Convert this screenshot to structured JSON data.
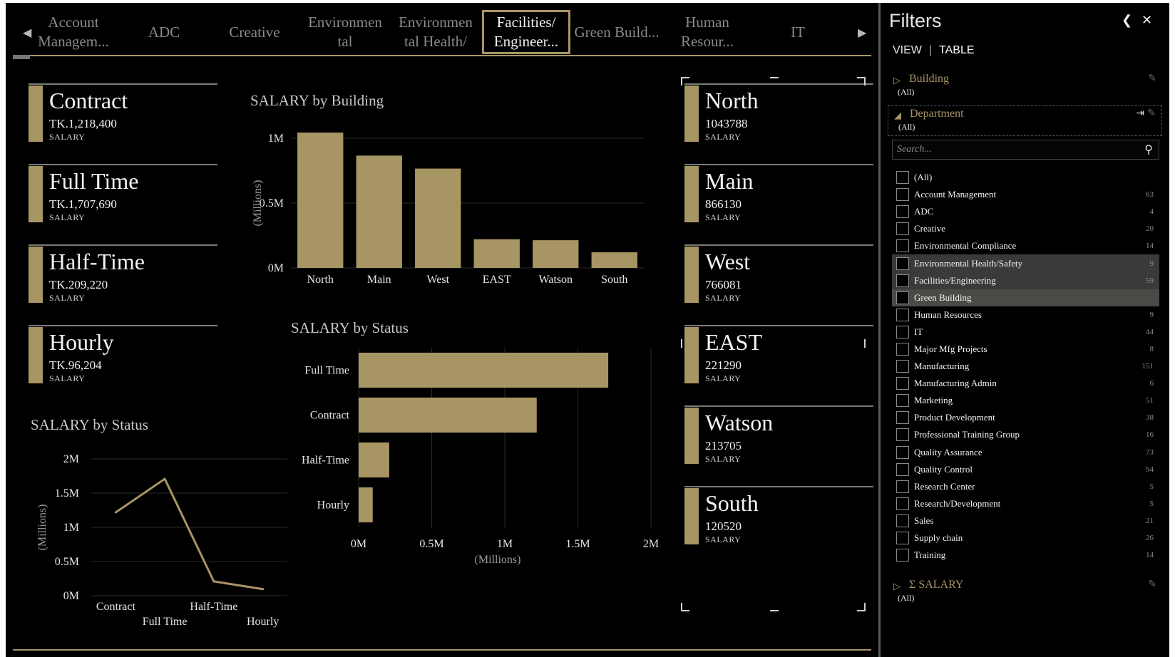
{
  "tiles": {
    "items": [
      {
        "label": "Account Managem...",
        "selected": false
      },
      {
        "label": "ADC",
        "selected": false
      },
      {
        "label": "Creative",
        "selected": false
      },
      {
        "label": "Environmen tal",
        "selected": false
      },
      {
        "label": "Environmen tal Health/",
        "selected": false
      },
      {
        "label": "Facilities/ Engineer...",
        "selected": true
      },
      {
        "label": "Green Build...",
        "selected": false
      },
      {
        "label": "Human Resour...",
        "selected": false
      },
      {
        "label": "IT",
        "selected": false
      }
    ],
    "prev_icon": "◀",
    "next_icon": "▶"
  },
  "status_cards": [
    {
      "name": "Contract",
      "value": "TK.1,218,400",
      "label": "SALARY"
    },
    {
      "name": "Full Time",
      "value": "TK.1,707,690",
      "label": "SALARY"
    },
    {
      "name": "Half-Time",
      "value": "TK.209,220",
      "label": "SALARY"
    },
    {
      "name": "Hourly",
      "value": "TK.96,204",
      "label": "SALARY"
    }
  ],
  "building_cards": [
    {
      "name": "North",
      "value": "1043788",
      "label": "SALARY"
    },
    {
      "name": "Main",
      "value": "866130",
      "label": "SALARY"
    },
    {
      "name": "West",
      "value": "766081",
      "label": "SALARY"
    },
    {
      "name": "EAST",
      "value": "221290",
      "label": "SALARY"
    },
    {
      "name": "Watson",
      "value": "213705",
      "label": "SALARY"
    },
    {
      "name": "South",
      "value": "120520",
      "label": "SALARY"
    }
  ],
  "colors": {
    "accent": "#a89564",
    "background": "#000000",
    "text": "#e6e6e6"
  },
  "chart_data": [
    {
      "type": "bar",
      "title": "SALARY by Building",
      "ylabel": "(Millions)",
      "categories": [
        "North",
        "Main",
        "West",
        "EAST",
        "Watson",
        "South"
      ],
      "values": [
        1043788,
        866130,
        766081,
        221290,
        213705,
        120520
      ],
      "ylim": [
        0,
        1000000
      ],
      "yticks": [
        "0M",
        "0.5M",
        "1M"
      ],
      "grid": true
    },
    {
      "type": "bar",
      "orientation": "horizontal",
      "title": "SALARY by Status",
      "xlabel": "(Millions)",
      "categories": [
        "Full Time",
        "Contract",
        "Half-Time",
        "Hourly"
      ],
      "values": [
        1707690,
        1218400,
        209220,
        96204
      ],
      "xlim": [
        0,
        2000000
      ],
      "xticks": [
        "0M",
        "0.5M",
        "1M",
        "1.5M",
        "2M"
      ],
      "grid": true
    },
    {
      "type": "line",
      "title": "SALARY by Status",
      "ylabel": "(Millions)",
      "categories": [
        "Contract",
        "Full Time",
        "Half-Time",
        "Hourly"
      ],
      "values": [
        1218400,
        1707690,
        209220,
        96204
      ],
      "ylim": [
        0,
        2000000
      ],
      "yticks": [
        "0M",
        "0.5M",
        "1M",
        "1.5M",
        "2M"
      ],
      "grid": true
    }
  ],
  "filters": {
    "title": "Filters",
    "collapse_icon": "❮",
    "close_icon": "✕",
    "tab_view": "VIEW",
    "tab_table": "TABLE",
    "building": {
      "name": "Building",
      "value": "(All)"
    },
    "department": {
      "name": "Department",
      "value": "(All)"
    },
    "search_placeholder": "Search...",
    "salary": {
      "name": "Σ SALARY",
      "value": "(All)"
    },
    "items": [
      {
        "name": "(All)",
        "count": "",
        "state": ""
      },
      {
        "name": "Account Management",
        "count": "63",
        "state": ""
      },
      {
        "name": "ADC",
        "count": "4",
        "state": ""
      },
      {
        "name": "Creative",
        "count": "20",
        "state": ""
      },
      {
        "name": "Environmental Compliance",
        "count": "14",
        "state": ""
      },
      {
        "name": "Environmental Health/Safety",
        "count": "9",
        "state": "hl"
      },
      {
        "name": "Facilities/Engineering",
        "count": "59",
        "state": "hl"
      },
      {
        "name": "Green Building",
        "count": "",
        "state": "hl2"
      },
      {
        "name": "Human Resources",
        "count": "9",
        "state": ""
      },
      {
        "name": "IT",
        "count": "44",
        "state": ""
      },
      {
        "name": "Major Mfg Projects",
        "count": "8",
        "state": ""
      },
      {
        "name": "Manufacturing",
        "count": "151",
        "state": ""
      },
      {
        "name": "Manufacturing Admin",
        "count": "6",
        "state": ""
      },
      {
        "name": "Marketing",
        "count": "51",
        "state": ""
      },
      {
        "name": "Product Development",
        "count": "38",
        "state": ""
      },
      {
        "name": "Professional Training Group",
        "count": "16",
        "state": ""
      },
      {
        "name": "Quality Assurance",
        "count": "73",
        "state": ""
      },
      {
        "name": "Quality Control",
        "count": "94",
        "state": ""
      },
      {
        "name": "Research Center",
        "count": "5",
        "state": ""
      },
      {
        "name": "Research/Development",
        "count": "5",
        "state": ""
      },
      {
        "name": "Sales",
        "count": "21",
        "state": ""
      },
      {
        "name": "Supply chain",
        "count": "26",
        "state": ""
      },
      {
        "name": "Training",
        "count": "14",
        "state": ""
      }
    ]
  }
}
